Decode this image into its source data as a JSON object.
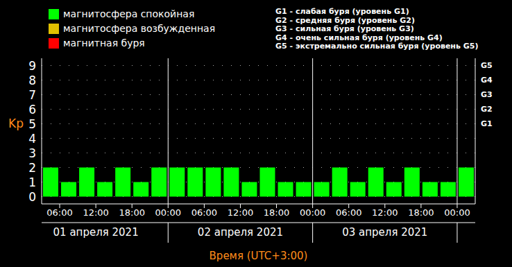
{
  "chart_data": {
    "type": "bar",
    "x": [
      4.5,
      7.5,
      10.5,
      13.5,
      16.5,
      19.5,
      22.5,
      25.5,
      28.5,
      31.5,
      34.5,
      37.5,
      40.5,
      43.5,
      46.5,
      49.5,
      52.5,
      55.5,
      58.5,
      61.5,
      64.5,
      67.5,
      70.5,
      73.5
    ],
    "values": [
      2,
      1,
      2,
      1,
      2,
      1,
      2,
      2,
      2,
      2,
      2,
      1,
      2,
      1,
      1,
      1,
      2,
      1,
      2,
      1,
      2,
      1,
      1,
      2
    ],
    "color": "#00ff00",
    "xlim": [
      3,
      75
    ],
    "xticks": [
      {
        "value": 6,
        "label": "06:00"
      },
      {
        "value": 12,
        "label": "12:00"
      },
      {
        "value": 18,
        "label": "18:00"
      },
      {
        "value": 24,
        "label": "00:00"
      },
      {
        "value": 30,
        "label": "06:00"
      },
      {
        "value": 36,
        "label": "12:00"
      },
      {
        "value": 42,
        "label": "18:00"
      },
      {
        "value": 48,
        "label": "00:00"
      },
      {
        "value": 54,
        "label": "06:00"
      },
      {
        "value": 60,
        "label": "12:00"
      },
      {
        "value": 66,
        "label": "18:00"
      },
      {
        "value": 72,
        "label": "00:00"
      }
    ],
    "ylim": [
      -0.5,
      9.5
    ],
    "yticks": [
      0,
      1,
      2,
      3,
      4,
      5,
      6,
      7,
      8,
      9
    ],
    "y2lim": [
      -0.5,
      9.5
    ],
    "y2ticks": [
      {
        "value": 5,
        "label": "G1"
      },
      {
        "value": 6,
        "label": "G2"
      },
      {
        "value": 7,
        "label": "G3"
      },
      {
        "value": 8,
        "label": "G4"
      },
      {
        "value": 9,
        "label": "G5"
      }
    ],
    "y_label": "Kp",
    "x_label": "Время (UTC+3:00)",
    "grid": true,
    "legend_items": [
      {
        "label": "магнитосфера спокойная",
        "color": "#00ff00"
      },
      {
        "label": "магнитосфера возбужденная",
        "color": "#e0c000"
      },
      {
        "label": "магнитная буря",
        "color": "#ff0000"
      }
    ],
    "storm_levels": [
      "G1 - слабая буря (уровень G1)",
      "G2 - средняя буря (уровень G2)",
      "G3 - сильная буря (уровень G3)",
      "G4 - очень сильная буря (уровень G4)",
      "G5 - экстремально сильная буря (уровень G5)"
    ],
    "day_labels": [
      "01 апреля 2021",
      "02 апреля 2021",
      "03 апреля 2021"
    ],
    "day_boundaries": [
      24,
      48,
      72
    ]
  }
}
